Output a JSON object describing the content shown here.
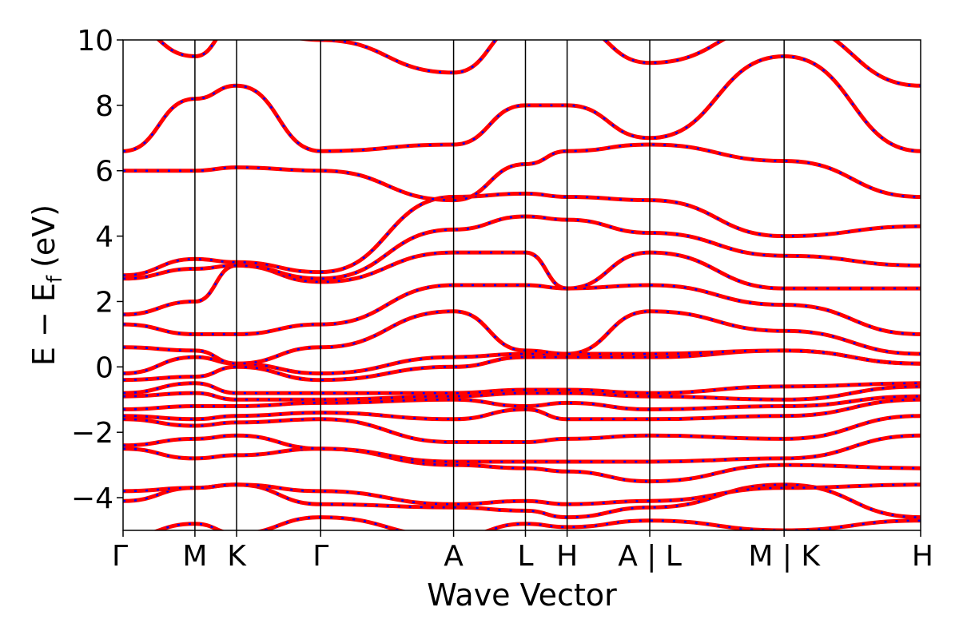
{
  "chart_data": {
    "type": "line",
    "xlabel": "Wave Vector",
    "ylabel_main": "E − E",
    "ylabel_sub": "f",
    "ylabel_unit": "(eV)",
    "ylim": [
      -5,
      10
    ],
    "yticks": [
      -4,
      -2,
      0,
      2,
      4,
      6,
      8,
      10
    ],
    "ytick_labels": [
      "−4",
      "−2",
      "0",
      "2",
      "4",
      "6",
      "8",
      "10"
    ],
    "grid": false,
    "legend": "none",
    "xlim": [
      0,
      11.1
    ],
    "kpoint_positions": [
      0,
      1.0,
      1.58,
      2.75,
      4.6,
      5.6,
      6.18,
      7.33,
      9.2,
      11.1
    ],
    "kpoint_labels": [
      "Γ",
      "M",
      "K",
      "Γ",
      "A",
      "L",
      "H",
      "A | L",
      "M | K",
      "H"
    ],
    "series_colors": {
      "band": "#ff0000",
      "overlay": "#0000ff"
    },
    "bands_at_kpoints": [
      [
        -5.2,
        -4.8,
        -5.1,
        -4.6,
        -5.2,
        -4.8,
        -4.9,
        -4.7,
        -5.0,
        -4.7
      ],
      [
        -4.1,
        -3.7,
        -3.6,
        -4.2,
        -4.3,
        -4.4,
        -4.6,
        -4.3,
        -3.6,
        -4.6
      ],
      [
        -3.8,
        -3.7,
        -3.6,
        -3.8,
        -4.2,
        -4.1,
        -4.2,
        -4.1,
        -3.7,
        -3.6
      ],
      [
        -2.5,
        -2.8,
        -2.7,
        -2.5,
        -3.0,
        -3.1,
        -3.2,
        -3.5,
        -3.0,
        -3.1
      ],
      [
        -2.4,
        -2.2,
        -2.1,
        -2.5,
        -2.9,
        -2.9,
        -2.9,
        -2.9,
        -2.8,
        -2.1
      ],
      [
        -1.6,
        -1.8,
        -1.7,
        -1.6,
        -2.3,
        -2.3,
        -2.2,
        -2.1,
        -2.2,
        -1.5
      ],
      [
        -1.5,
        -1.6,
        -1.5,
        -1.4,
        -1.6,
        -1.3,
        -1.6,
        -1.6,
        -1.5,
        -1.0
      ],
      [
        -1.3,
        -1.2,
        -1.2,
        -1.1,
        -1.0,
        -1.2,
        -1.1,
        -1.3,
        -1.2,
        -0.9
      ],
      [
        -0.9,
        -0.8,
        -1.0,
        -1.0,
        -0.9,
        -0.8,
        -0.8,
        -0.9,
        -1.0,
        -0.6
      ],
      [
        -0.8,
        -0.5,
        -0.8,
        -0.8,
        -0.8,
        -0.7,
        -0.7,
        -0.8,
        -0.6,
        -0.5
      ],
      [
        -0.4,
        -0.3,
        0.0,
        -0.4,
        0.0,
        0.3,
        0.3,
        0.3,
        0.5,
        0.1
      ],
      [
        -0.2,
        0.3,
        0.1,
        -0.2,
        0.3,
        0.4,
        0.4,
        0.4,
        0.5,
        0.1
      ],
      [
        0.6,
        0.5,
        0.1,
        0.6,
        1.7,
        0.5,
        0.4,
        1.7,
        1.1,
        0.4
      ],
      [
        1.3,
        1.0,
        1.0,
        1.3,
        2.5,
        2.5,
        2.4,
        2.5,
        1.9,
        1.0
      ],
      [
        1.6,
        2.0,
        3.1,
        2.6,
        3.5,
        3.5,
        2.4,
        3.5,
        2.4,
        2.4
      ],
      [
        2.7,
        3.0,
        3.1,
        2.7,
        4.2,
        4.6,
        4.5,
        4.1,
        3.4,
        3.1
      ],
      [
        2.8,
        3.3,
        3.2,
        2.9,
        5.2,
        5.3,
        5.2,
        5.1,
        4.0,
        4.3
      ],
      [
        6.0,
        6.0,
        6.1,
        6.0,
        5.1,
        6.2,
        6.6,
        6.8,
        6.3,
        5.2
      ],
      [
        6.6,
        8.2,
        8.6,
        6.6,
        6.8,
        8.0,
        8.0,
        7.0,
        9.5,
        6.6
      ],
      [
        10.5,
        9.5,
        10.5,
        10.0,
        9.0,
        10.5,
        10.5,
        9.3,
        10.5,
        8.6
      ]
    ]
  }
}
